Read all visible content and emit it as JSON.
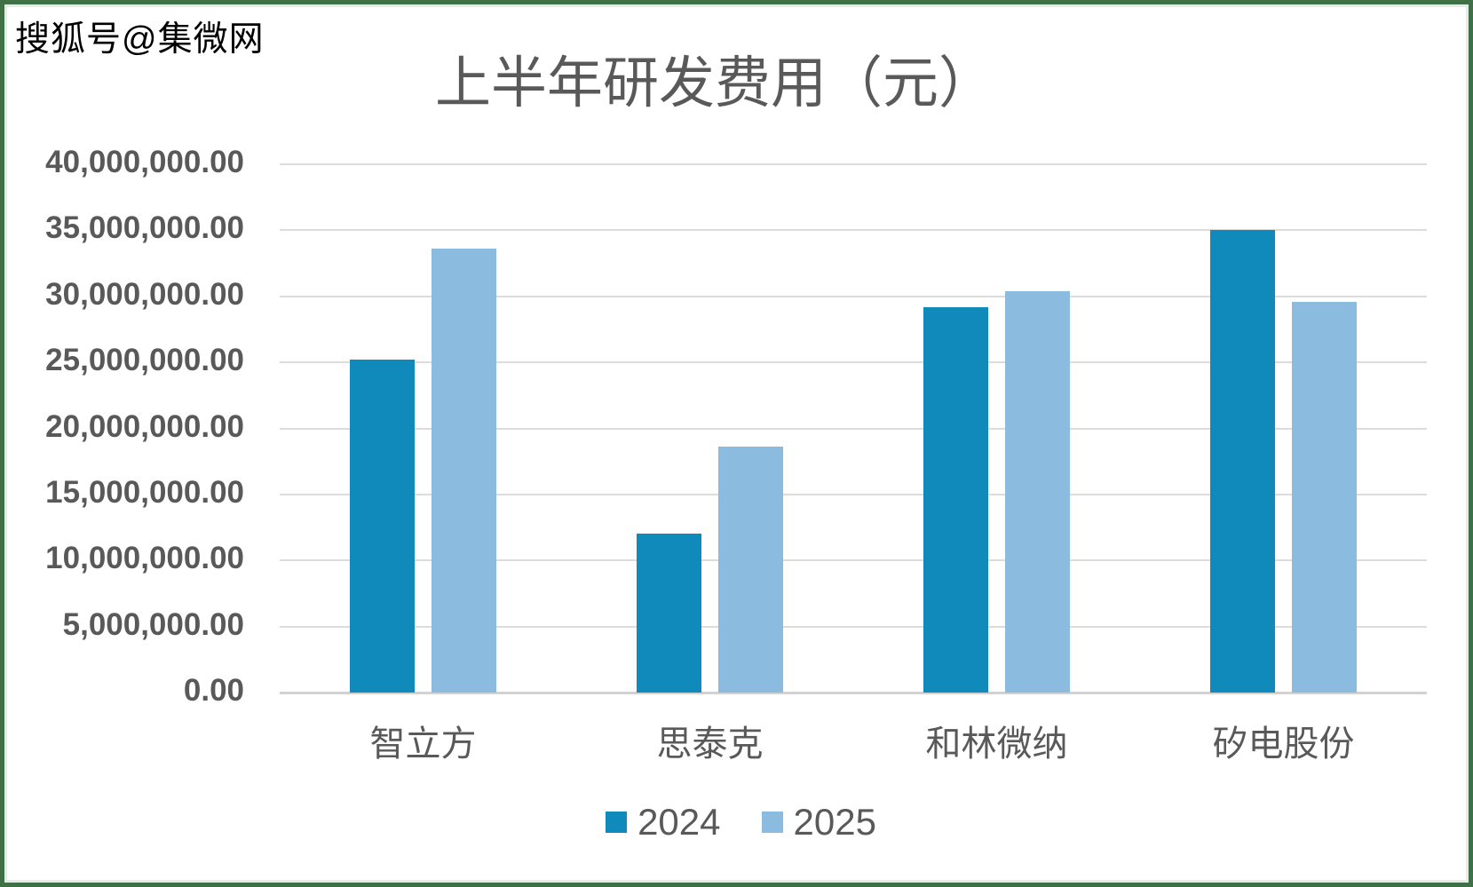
{
  "watermark": "搜狐号@集微网",
  "chart_data": {
    "type": "bar",
    "title": "上半年研发费用（元）",
    "categories": [
      "智立方",
      "思泰克",
      "和林微纳",
      "矽电股份"
    ],
    "series": [
      {
        "name": "2024",
        "color": "#0f8abb",
        "values": [
          25200000,
          12000000,
          29200000,
          35000000
        ]
      },
      {
        "name": "2025",
        "color": "#8bbce0",
        "values": [
          33600000,
          18600000,
          30400000,
          29600000
        ]
      }
    ],
    "ylim": [
      0,
      40000000
    ],
    "ytick_step": 5000000,
    "ytick_labels": [
      "0.00",
      "5,000,000.00",
      "10,000,000.00",
      "15,000,000.00",
      "20,000,000.00",
      "25,000,000.00",
      "30,000,000.00",
      "35,000,000.00",
      "40,000,000.00"
    ],
    "grid": true,
    "legend_position": "bottom",
    "text_color": "#595959",
    "gridline_color": "#dcdcdc"
  }
}
